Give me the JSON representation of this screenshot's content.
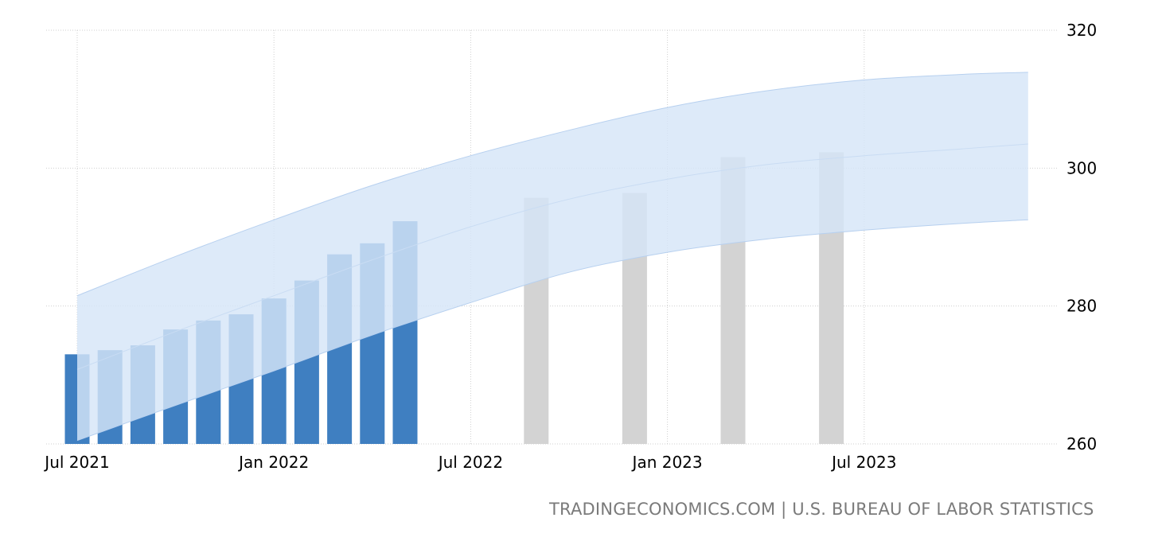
{
  "source": "TRADINGECONOMICS.COM | U.S. BUREAU OF LABOR STATISTICS",
  "colors": {
    "actual_bar": "#3f7fc1",
    "forecast_bar": "#d3d3d3",
    "band_fill": "#d6e5f8",
    "band_edge": "#b7d0ef",
    "trend_line": "#c9dcf3",
    "grid": "#cfcfcf",
    "source_text": "#7a7a7a"
  },
  "chart_data": {
    "type": "bar",
    "title": "",
    "xlabel": "",
    "ylabel": "",
    "y_axis_side": "right",
    "ylim": [
      260,
      320
    ],
    "yticks": [
      260,
      280,
      300,
      320
    ],
    "xticks": [
      {
        "date": "2021-07",
        "label": "Jul 2021"
      },
      {
        "date": "2022-01",
        "label": "Jan 2022"
      },
      {
        "date": "2022-07",
        "label": "Jul 2022"
      },
      {
        "date": "2023-01",
        "label": "Jan 2023"
      },
      {
        "date": "2023-07",
        "label": "Jul 2023"
      }
    ],
    "grid": true,
    "series": [
      {
        "kind": "actual",
        "x": [
          "2021-07",
          "2021-08",
          "2021-09",
          "2021-10",
          "2021-11",
          "2021-12",
          "2022-01",
          "2022-02",
          "2022-03",
          "2022-04",
          "2022-05"
        ],
        "values": [
          273.0,
          273.6,
          274.3,
          276.6,
          277.9,
          278.8,
          281.1,
          283.7,
          287.5,
          289.1,
          292.3
        ]
      },
      {
        "kind": "forecast",
        "x": [
          "2022-09",
          "2022-12",
          "2023-03",
          "2023-06"
        ],
        "values": [
          295.7,
          296.4,
          301.6,
          302.3
        ]
      }
    ],
    "forecast_band": {
      "x": [
        "2021-07",
        "2021-10",
        "2022-01",
        "2022-04",
        "2022-07",
        "2022-10",
        "2023-01",
        "2023-04",
        "2023-07",
        "2023-10",
        "2023-12"
      ],
      "upper": [
        281.5,
        287.2,
        292.5,
        297.5,
        301.8,
        305.5,
        308.8,
        311.2,
        312.8,
        313.6,
        313.9
      ],
      "lower": [
        260.5,
        265.6,
        270.6,
        275.8,
        280.5,
        284.9,
        287.8,
        289.7,
        291.0,
        292.0,
        292.5
      ],
      "mid": [
        270.8,
        276.3,
        281.5,
        286.7,
        291.5,
        295.5,
        298.4,
        300.5,
        301.8,
        302.8,
        303.5
      ]
    }
  }
}
